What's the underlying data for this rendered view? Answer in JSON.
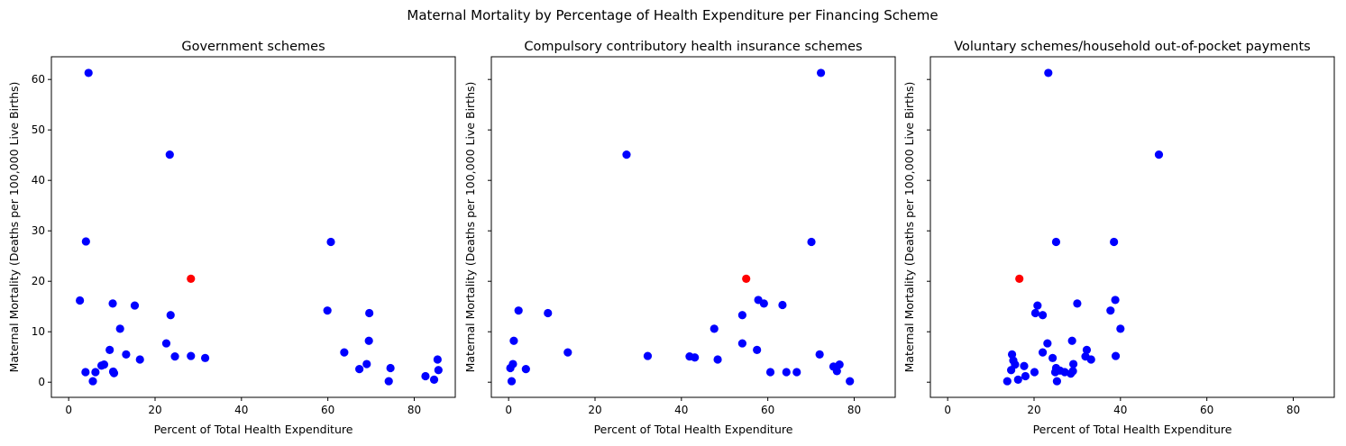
{
  "suptitle": "Maternal Mortality by Percentage of Health Expenditure per Financing Scheme",
  "colors": {
    "normal": "#0000ff",
    "highlight": "#ff0000",
    "axes": "#000000"
  },
  "chart_data": [
    {
      "type": "scatter",
      "title": "Government schemes",
      "xlabel": "Percent of Total Health Expenditure",
      "ylabel": "Maternal Mortality (Deaths per 100,000 Live Births)",
      "xlim": [
        -4,
        89.5
      ],
      "ylim": [
        -3,
        64.5
      ],
      "xticks": [
        0,
        20,
        40,
        60,
        80
      ],
      "yticks": [
        0,
        10,
        20,
        30,
        40,
        50,
        60
      ],
      "grid": false,
      "points": [
        [
          4.6,
          61.3
        ],
        [
          23.4,
          45.1
        ],
        [
          4.0,
          27.9
        ],
        [
          60.7,
          27.8
        ],
        [
          2.6,
          16.2
        ],
        [
          10.2,
          15.6
        ],
        [
          15.3,
          15.2
        ],
        [
          59.9,
          14.2
        ],
        [
          69.6,
          13.7
        ],
        [
          23.6,
          13.3
        ],
        [
          11.9,
          10.6
        ],
        [
          69.5,
          8.2
        ],
        [
          22.6,
          7.7
        ],
        [
          9.5,
          6.4
        ],
        [
          63.8,
          5.9
        ],
        [
          13.3,
          5.5
        ],
        [
          24.6,
          5.1
        ],
        [
          28.3,
          5.2
        ],
        [
          31.6,
          4.8
        ],
        [
          16.5,
          4.5
        ],
        [
          85.4,
          4.5
        ],
        [
          8.2,
          3.5
        ],
        [
          7.6,
          3.3
        ],
        [
          69.0,
          3.6
        ],
        [
          74.5,
          2.8
        ],
        [
          67.3,
          2.6
        ],
        [
          85.6,
          2.4
        ],
        [
          10.3,
          2.1
        ],
        [
          3.9,
          2.0
        ],
        [
          6.2,
          2.0
        ],
        [
          10.5,
          1.8
        ],
        [
          82.6,
          1.2
        ],
        [
          84.6,
          0.5
        ],
        [
          5.6,
          0.2
        ],
        [
          74.1,
          0.2
        ]
      ],
      "highlight": [
        [
          28.3,
          20.5
        ]
      ]
    },
    {
      "type": "scatter",
      "title": "Compulsory contributory health insurance schemes",
      "xlabel": "Percent of Total Health Expenditure",
      "ylabel": "Maternal Mortality (Deaths per 100,000 Live Births)",
      "xlim": [
        -4,
        89.5
      ],
      "ylim": [
        -3,
        64.5
      ],
      "xticks": [
        0,
        20,
        40,
        60,
        80
      ],
      "yticks": [
        0,
        10,
        20,
        30,
        40,
        50,
        60
      ],
      "grid": false,
      "points": [
        [
          72.3,
          61.3
        ],
        [
          27.3,
          45.1
        ],
        [
          70.1,
          27.8
        ],
        [
          57.8,
          16.3
        ],
        [
          59.1,
          15.6
        ],
        [
          63.4,
          15.3
        ],
        [
          2.3,
          14.2
        ],
        [
          9.1,
          13.7
        ],
        [
          54.1,
          13.3
        ],
        [
          47.6,
          10.6
        ],
        [
          1.2,
          8.2
        ],
        [
          54.1,
          7.7
        ],
        [
          57.5,
          6.4
        ],
        [
          13.7,
          5.9
        ],
        [
          72.0,
          5.5
        ],
        [
          32.2,
          5.2
        ],
        [
          41.9,
          5.1
        ],
        [
          43.1,
          4.9
        ],
        [
          48.4,
          4.5
        ],
        [
          1.0,
          3.6
        ],
        [
          75.2,
          3.1
        ],
        [
          76.6,
          3.5
        ],
        [
          0.4,
          2.8
        ],
        [
          4.0,
          2.6
        ],
        [
          76.0,
          2.2
        ],
        [
          60.6,
          2.0
        ],
        [
          64.3,
          2.0
        ],
        [
          66.7,
          2.0
        ],
        [
          79.0,
          0.2
        ],
        [
          0.7,
          0.2
        ]
      ],
      "highlight": [
        [
          55.0,
          20.5
        ]
      ]
    },
    {
      "type": "scatter",
      "title": "Voluntary schemes/household out-of-pocket payments",
      "xlabel": "Percent of Total Health Expenditure",
      "ylabel": "Maternal Mortality (Deaths per 100,000 Live Births)",
      "xlim": [
        -4,
        89.5
      ],
      "ylim": [
        -3,
        64.5
      ],
      "xticks": [
        0,
        20,
        40,
        60,
        80
      ],
      "yticks": [
        0,
        10,
        20,
        30,
        40,
        50,
        60
      ],
      "grid": false,
      "points": [
        [
          23.3,
          61.3
        ],
        [
          48.9,
          45.1
        ],
        [
          25.1,
          27.8
        ],
        [
          38.5,
          27.8
        ],
        [
          38.8,
          16.3
        ],
        [
          30.0,
          15.6
        ],
        [
          20.8,
          15.2
        ],
        [
          37.7,
          14.2
        ],
        [
          20.3,
          13.7
        ],
        [
          22.0,
          13.3
        ],
        [
          40.0,
          10.6
        ],
        [
          28.8,
          8.2
        ],
        [
          23.1,
          7.7
        ],
        [
          32.2,
          6.4
        ],
        [
          22.0,
          5.9
        ],
        [
          14.9,
          5.5
        ],
        [
          31.9,
          5.1
        ],
        [
          38.9,
          5.2
        ],
        [
          24.3,
          4.8
        ],
        [
          33.2,
          4.5
        ],
        [
          15.2,
          4.3
        ],
        [
          15.6,
          3.5
        ],
        [
          29.1,
          3.6
        ],
        [
          17.7,
          3.2
        ],
        [
          25.1,
          2.8
        ],
        [
          14.7,
          2.4
        ],
        [
          26.0,
          2.3
        ],
        [
          24.9,
          2.0
        ],
        [
          20.1,
          2.0
        ],
        [
          27.1,
          2.0
        ],
        [
          29.0,
          2.2
        ],
        [
          28.5,
          1.7
        ],
        [
          18.0,
          1.2
        ],
        [
          16.3,
          0.5
        ],
        [
          13.8,
          0.2
        ],
        [
          25.3,
          0.2
        ]
      ],
      "highlight": [
        [
          16.6,
          20.5
        ]
      ]
    }
  ]
}
